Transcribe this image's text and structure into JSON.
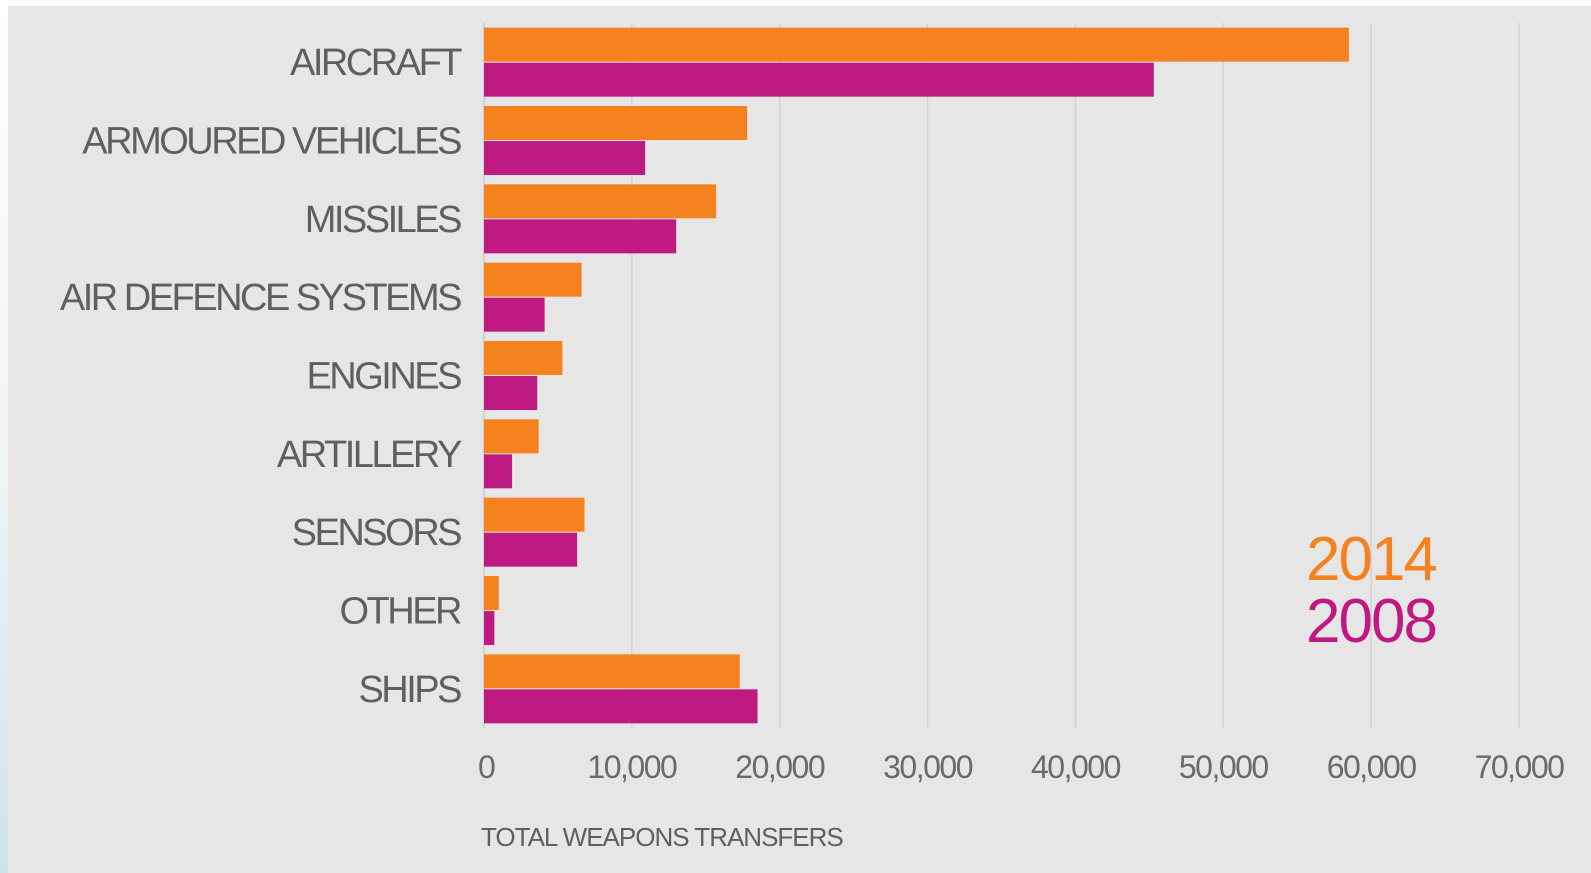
{
  "chart_data": {
    "type": "bar",
    "orientation": "horizontal",
    "categories": [
      "AIRCRAFT",
      "ARMOURED VEHICLES",
      "MISSILES",
      "AIR DEFENCE SYSTEMS",
      "ENGINES",
      "ARTILLERY",
      "SENSORS",
      "OTHER",
      "SHIPS"
    ],
    "series": [
      {
        "name": "2014",
        "color": "#f5821f",
        "values": [
          58500,
          17800,
          15700,
          6600,
          5300,
          3700,
          6800,
          1000,
          17300
        ]
      },
      {
        "name": "2008",
        "color": "#bf1a82",
        "values": [
          45300,
          10900,
          13000,
          4100,
          3600,
          1900,
          6300,
          700,
          18500
        ]
      }
    ],
    "xlabel": "TOTAL WEAPONS TRANSFERS",
    "xlim": [
      0,
      70000
    ],
    "xticks": [
      0,
      10000,
      20000,
      30000,
      40000,
      50000,
      60000,
      70000
    ],
    "xtick_labels": [
      "0",
      "10,000",
      "20,000",
      "30,000",
      "40,000",
      "50,000",
      "60,000",
      "70,000"
    ],
    "grid": "vertical",
    "legend_position": "bottom-right"
  }
}
